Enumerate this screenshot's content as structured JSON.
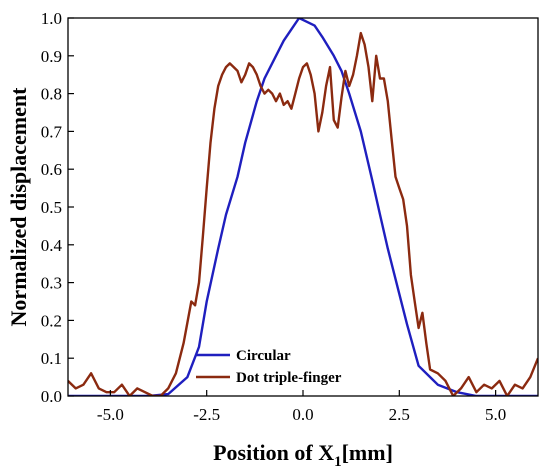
{
  "chart_data": {
    "type": "line",
    "xlabel": "Position of X",
    "xlabel_subscript": "1",
    "xlabel_unit": "[mm]",
    "ylabel": "Normalized displacement",
    "xlim": [
      -6.1,
      6.1
    ],
    "ylim": [
      0,
      1.0
    ],
    "xticks": [
      -5.0,
      -2.5,
      0.0,
      2.5,
      5.0
    ],
    "xtick_labels": [
      "-5.0",
      "-2.5",
      "0.0",
      "2.5",
      "5.0"
    ],
    "yticks": [
      0.0,
      0.1,
      0.2,
      0.3,
      0.4,
      0.5,
      0.6,
      0.7,
      0.8,
      0.9,
      1.0
    ],
    "ytick_labels": [
      "0.0",
      "0.1",
      "0.2",
      "0.3",
      "0.4",
      "0.5",
      "0.6",
      "0.7",
      "0.8",
      "0.9",
      "1.0"
    ],
    "grid": false,
    "legend_position": "bottom-center",
    "series": [
      {
        "name": "Circular",
        "color": "#1f1fbf",
        "x": [
          -6.1,
          -5.5,
          -5.0,
          -4.5,
          -4.0,
          -3.5,
          -3.0,
          -2.7,
          -2.5,
          -2.2,
          -2.0,
          -1.7,
          -1.5,
          -1.2,
          -1.0,
          -0.7,
          -0.5,
          -0.3,
          -0.1,
          0.1,
          0.3,
          0.5,
          0.8,
          1.0,
          1.2,
          1.5,
          1.8,
          2.0,
          2.2,
          2.5,
          2.7,
          3.0,
          3.3,
          3.5,
          4.0,
          4.5,
          5.0,
          5.5,
          6.1
        ],
        "y": [
          0.0,
          0.0,
          0.0,
          0.0,
          0.0,
          0.005,
          0.05,
          0.13,
          0.25,
          0.39,
          0.48,
          0.58,
          0.67,
          0.78,
          0.84,
          0.9,
          0.94,
          0.97,
          1.0,
          0.99,
          0.98,
          0.95,
          0.9,
          0.86,
          0.8,
          0.7,
          0.57,
          0.48,
          0.39,
          0.27,
          0.19,
          0.08,
          0.05,
          0.03,
          0.01,
          0.0,
          0.0,
          0.0,
          0.0
        ]
      },
      {
        "name": "Dot triple-finger",
        "color": "#8b2a10",
        "x": [
          -6.1,
          -5.9,
          -5.7,
          -5.5,
          -5.3,
          -5.1,
          -4.9,
          -4.7,
          -4.5,
          -4.3,
          -4.1,
          -3.9,
          -3.7,
          -3.5,
          -3.3,
          -3.1,
          -2.9,
          -2.8,
          -2.7,
          -2.6,
          -2.5,
          -2.4,
          -2.3,
          -2.2,
          -2.1,
          -2.0,
          -1.9,
          -1.8,
          -1.7,
          -1.6,
          -1.5,
          -1.4,
          -1.3,
          -1.2,
          -1.1,
          -1.0,
          -0.9,
          -0.8,
          -0.7,
          -0.6,
          -0.5,
          -0.4,
          -0.3,
          -0.2,
          -0.1,
          0.0,
          0.1,
          0.2,
          0.3,
          0.4,
          0.5,
          0.6,
          0.7,
          0.8,
          0.9,
          1.0,
          1.1,
          1.2,
          1.3,
          1.4,
          1.5,
          1.6,
          1.7,
          1.8,
          1.9,
          2.0,
          2.1,
          2.2,
          2.3,
          2.4,
          2.5,
          2.6,
          2.7,
          2.8,
          2.9,
          3.0,
          3.1,
          3.2,
          3.3,
          3.5,
          3.7,
          3.9,
          4.1,
          4.3,
          4.5,
          4.7,
          4.9,
          5.1,
          5.3,
          5.5,
          5.7,
          5.9,
          6.1
        ],
        "y": [
          0.04,
          0.02,
          0.03,
          0.06,
          0.02,
          0.01,
          0.01,
          0.03,
          0.0,
          0.02,
          0.01,
          0.0,
          0.0,
          0.02,
          0.06,
          0.14,
          0.25,
          0.24,
          0.3,
          0.42,
          0.55,
          0.67,
          0.76,
          0.82,
          0.85,
          0.87,
          0.88,
          0.87,
          0.86,
          0.83,
          0.85,
          0.88,
          0.87,
          0.85,
          0.82,
          0.8,
          0.81,
          0.8,
          0.78,
          0.8,
          0.77,
          0.78,
          0.76,
          0.8,
          0.84,
          0.87,
          0.88,
          0.85,
          0.8,
          0.7,
          0.75,
          0.82,
          0.87,
          0.73,
          0.71,
          0.79,
          0.86,
          0.82,
          0.85,
          0.9,
          0.96,
          0.93,
          0.87,
          0.78,
          0.9,
          0.84,
          0.84,
          0.78,
          0.68,
          0.58,
          0.55,
          0.52,
          0.45,
          0.32,
          0.25,
          0.18,
          0.22,
          0.14,
          0.07,
          0.06,
          0.04,
          0.0,
          0.02,
          0.05,
          0.01,
          0.03,
          0.02,
          0.04,
          0.0,
          0.03,
          0.02,
          0.05,
          0.1
        ]
      }
    ]
  }
}
